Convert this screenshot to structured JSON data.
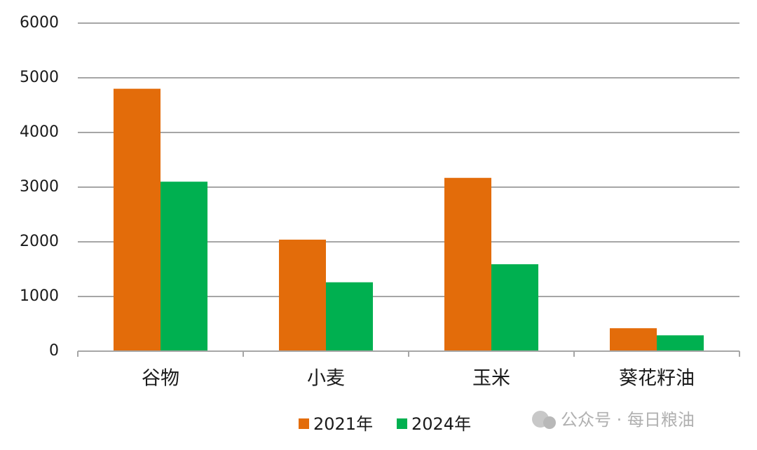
{
  "chart_data": {
    "type": "bar",
    "categories": [
      "谷物",
      "小麦",
      "玉米",
      "葵花籽油"
    ],
    "series": [
      {
        "name": "2021年",
        "color": "#e36c0a",
        "values": [
          4800,
          2040,
          3170,
          420
        ]
      },
      {
        "name": "2024年",
        "color": "#00b050",
        "values": [
          3100,
          1260,
          1590,
          290
        ]
      }
    ],
    "ylim": [
      0,
      6000
    ],
    "yticks": [
      0,
      1000,
      2000,
      3000,
      4000,
      5000,
      6000
    ],
    "grid": true,
    "legend": "bottom",
    "watermark": "公众号 · 每日粮油"
  }
}
